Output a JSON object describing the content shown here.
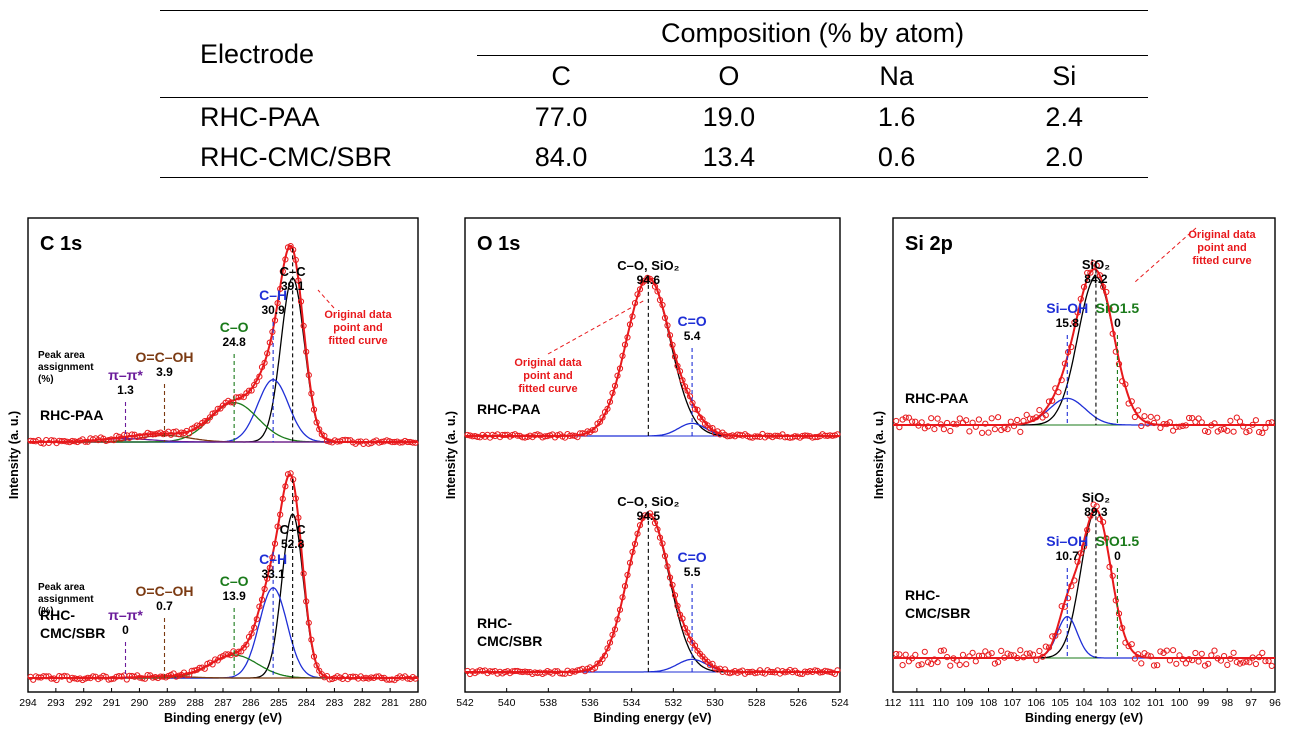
{
  "table": {
    "electrode_header": "Electrode",
    "composition_header": "Composition (% by atom)",
    "columns": [
      "C",
      "O",
      "Na",
      "Si"
    ],
    "rows": [
      {
        "name": "RHC-PAA",
        "values": [
          "77.0",
          "19.0",
          "1.6",
          "2.4"
        ]
      },
      {
        "name": "RHC-CMC/SBR",
        "values": [
          "84.0",
          "13.4",
          "0.6",
          "2.0"
        ]
      }
    ]
  },
  "colors": {
    "data": "#e8191c",
    "c_c": "#000000",
    "c_h": "#1f2fd6",
    "c_o": "#1a7a1a",
    "cooh": "#7b3a12",
    "pi": "#6a1b9a",
    "baseline": "#1f2fd6"
  },
  "chart_data": [
    {
      "type": "line",
      "title": "C 1s",
      "xlabel": "Binding energy (eV)",
      "ylabel": "Intensity (a. u.)",
      "xlim": [
        294,
        280
      ],
      "xticks": [
        294,
        293,
        292,
        291,
        290,
        289,
        288,
        287,
        286,
        285,
        284,
        283,
        282,
        281,
        280
      ],
      "annotation": [
        "Original data",
        "point and",
        "fitted curve"
      ],
      "assignment_label": [
        "Peak area",
        "assignment",
        "(%)"
      ],
      "samples": [
        {
          "name": "RHC-PAA",
          "components": [
            {
              "label": "C–C",
              "value": "39.1",
              "center": 284.5,
              "height": 1.0,
              "width": 0.42,
              "color": "#000000"
            },
            {
              "label": "C–H",
              "value": "30.9",
              "center": 285.2,
              "height": 0.38,
              "width": 0.55,
              "color": "#1f2fd6"
            },
            {
              "label": "C–O",
              "value": "24.8",
              "center": 286.6,
              "height": 0.24,
              "width": 0.85,
              "color": "#1a7a1a"
            },
            {
              "label": "O=C–OH",
              "value": "3.9",
              "center": 289.1,
              "height": 0.04,
              "width": 0.9,
              "color": "#7b3a12"
            },
            {
              "label": "π–π*",
              "value": "1.3",
              "center": 290.5,
              "height": 0.02,
              "width": 1.0,
              "color": "#6a1b9a"
            }
          ]
        },
        {
          "name": "RHC-CMC/SBR",
          "components": [
            {
              "label": "C–C",
              "value": "52.3",
              "center": 284.5,
              "height": 1.0,
              "width": 0.38,
              "color": "#000000"
            },
            {
              "label": "C–H",
              "value": "33.1",
              "center": 285.2,
              "height": 0.55,
              "width": 0.5,
              "color": "#1f2fd6"
            },
            {
              "label": "C–O",
              "value": "13.9",
              "center": 286.6,
              "height": 0.14,
              "width": 0.85,
              "color": "#1a7a1a"
            },
            {
              "label": "O=C–OH",
              "value": "0.7",
              "center": 289.1,
              "height": 0.01,
              "width": 0.9,
              "color": "#7b3a12"
            },
            {
              "label": "π–π*",
              "value": "0",
              "center": 290.5,
              "height": 0.0,
              "width": 1.0,
              "color": "#6a1b9a"
            }
          ]
        }
      ]
    },
    {
      "type": "line",
      "title": "O 1s",
      "xlabel": "Binding energy (eV)",
      "ylabel": "Intensity (a. u.)",
      "xlim": [
        542,
        524
      ],
      "xticks": [
        542,
        540,
        538,
        536,
        534,
        532,
        530,
        528,
        526,
        524
      ],
      "annotation": [
        "Original data",
        "point and",
        "fitted curve"
      ],
      "samples": [
        {
          "name": "RHC-PAA",
          "components": [
            {
              "label": "C–O, SiO₂",
              "value": "94.6",
              "center": 533.2,
              "height": 1.0,
              "width": 1.05,
              "color": "#000000"
            },
            {
              "label": "C=O",
              "value": "5.4",
              "center": 531.1,
              "height": 0.08,
              "width": 0.65,
              "color": "#1f2fd6"
            }
          ]
        },
        {
          "name": "RHC-CMC/SBR",
          "components": [
            {
              "label": "C–O, SiO₂",
              "value": "94.5",
              "center": 533.2,
              "height": 1.0,
              "width": 1.0,
              "color": "#000000"
            },
            {
              "label": "C=O",
              "value": "5.5",
              "center": 531.1,
              "height": 0.08,
              "width": 0.7,
              "color": "#1f2fd6"
            }
          ]
        }
      ]
    },
    {
      "type": "line",
      "title": "Si 2p",
      "xlabel": "Binding energy (eV)",
      "ylabel": "Intensity (a. u.)",
      "xlim": [
        112,
        96
      ],
      "xticks": [
        112,
        111,
        110,
        109,
        108,
        107,
        106,
        105,
        104,
        103,
        102,
        101,
        100,
        99,
        98,
        97,
        96
      ],
      "annotation": [
        "Original data",
        "point and",
        "fitted curve"
      ],
      "samples": [
        {
          "name": "RHC-PAA",
          "components": [
            {
              "label": "SiO₂",
              "value": "84.2",
              "center": 103.5,
              "height": 1.0,
              "width": 0.75,
              "color": "#000000"
            },
            {
              "label": "Si–OH",
              "value": "15.8",
              "center": 104.7,
              "height": 0.18,
              "width": 0.75,
              "color": "#1f2fd6"
            },
            {
              "label": "SiO1.5",
              "value": "0",
              "center": 102.6,
              "height": 0.0,
              "width": 0.7,
              "color": "#1a7a1a"
            }
          ]
        },
        {
          "name": "RHC-CMC/SBR",
          "components": [
            {
              "label": "SiO₂",
              "value": "89.3",
              "center": 103.5,
              "height": 1.0,
              "width": 0.62,
              "color": "#000000"
            },
            {
              "label": "Si–OH",
              "value": "10.7",
              "center": 104.7,
              "height": 0.28,
              "width": 0.42,
              "color": "#1f2fd6"
            },
            {
              "label": "SiO1.5",
              "value": "0",
              "center": 102.6,
              "height": 0.0,
              "width": 0.7,
              "color": "#1a7a1a"
            }
          ]
        }
      ]
    }
  ]
}
